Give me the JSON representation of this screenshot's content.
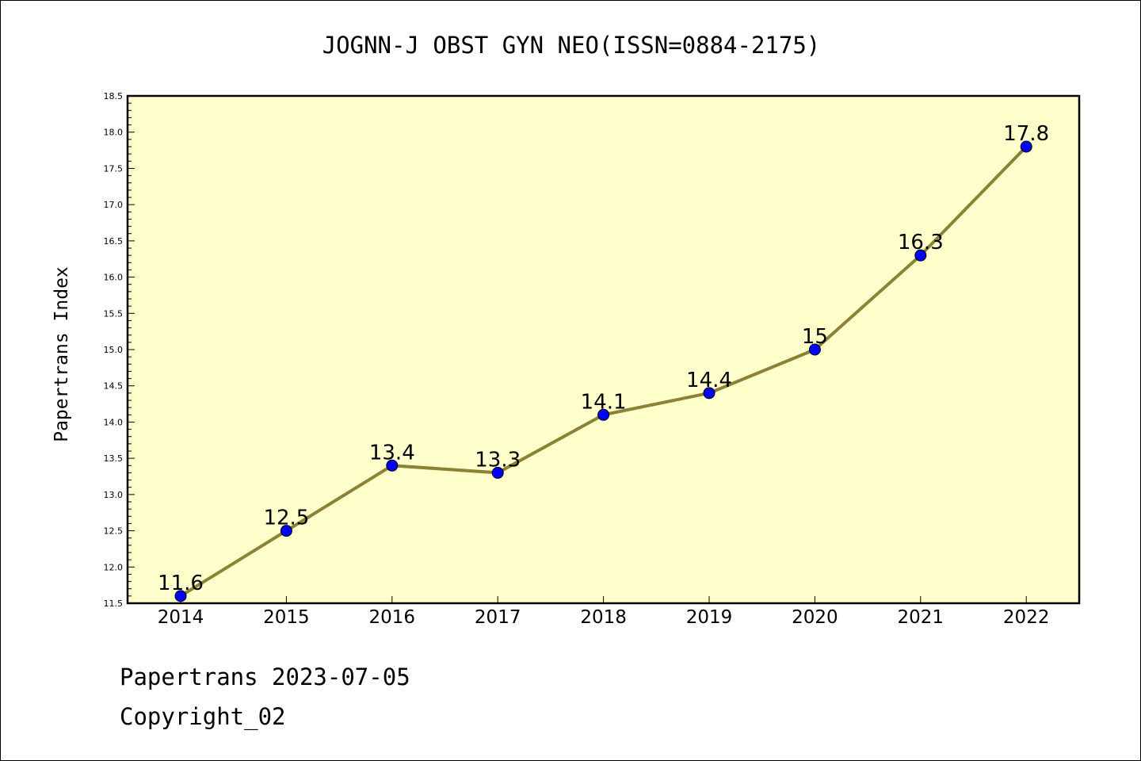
{
  "footer": {
    "line1": "Papertrans 2023-07-05",
    "line2": "Copyright_02"
  },
  "colors": {
    "plot_background": "#ffffcc",
    "line": "#8b8236",
    "marker": "#0000ff"
  },
  "chart_data": {
    "type": "line",
    "title": "JOGNN-J OBST GYN NEO(ISSN=0884-2175)",
    "xlabel": "",
    "ylabel": "Papertrans Index",
    "categories": [
      "2014",
      "2015",
      "2016",
      "2017",
      "2018",
      "2019",
      "2020",
      "2021",
      "2022"
    ],
    "series": [
      {
        "values": [
          11.6,
          12.5,
          13.4,
          13.3,
          14.1,
          14.4,
          15.0,
          16.3,
          17.8
        ],
        "data_labels": [
          "11.6",
          "12.5",
          "13.4",
          "13.3",
          "14.1",
          "14.4",
          "15",
          "16.3",
          "17.8"
        ]
      }
    ],
    "ylim": [
      11.5,
      18.5
    ],
    "yticks": [
      "11.5",
      "12.0",
      "12.5",
      "13.0",
      "13.5",
      "14.0",
      "14.5",
      "15.0",
      "15.5",
      "16.0",
      "16.5",
      "17.0",
      "17.5",
      "18.0",
      "18.5"
    ],
    "grid": false,
    "legend": "none"
  }
}
